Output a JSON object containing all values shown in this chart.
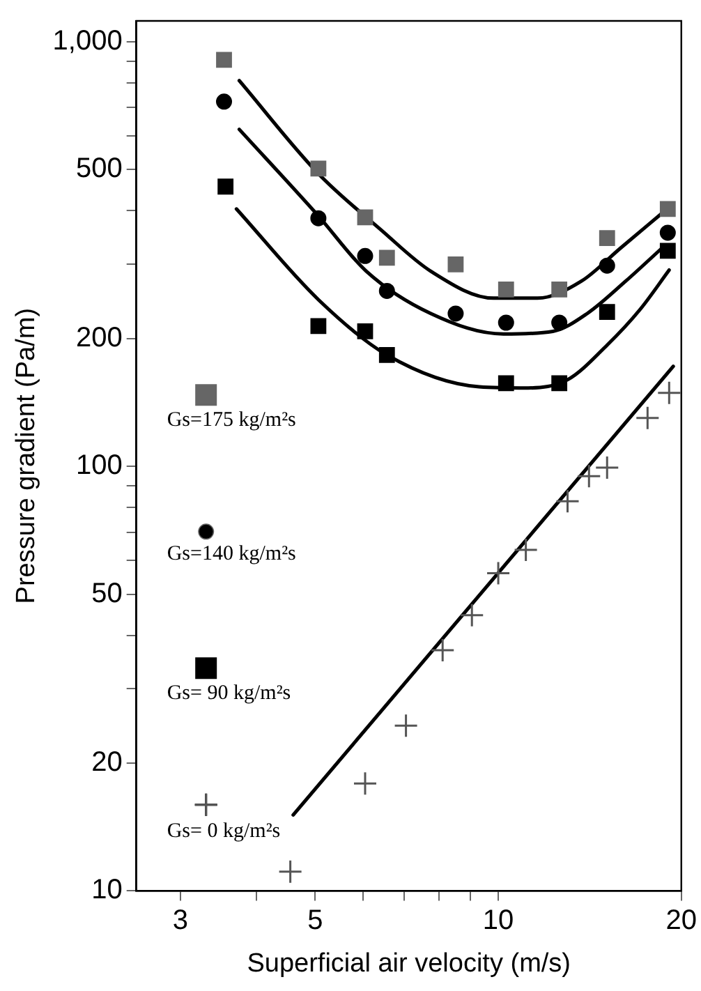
{
  "chart_data": {
    "type": "scatter",
    "xlabel": "Superficial air velocity (m/s)",
    "ylabel": "Pressure gradient (Pa/m)",
    "log": "xy",
    "grid": false,
    "legend": "left",
    "xlim": [
      2.54,
      20
    ],
    "ylim": [
      10,
      1120
    ],
    "xticks": [
      3,
      {
        "value": 4,
        "label": null
      },
      5,
      {
        "value": 6,
        "label": null
      },
      {
        "value": 7,
        "label": null
      },
      {
        "value": 8,
        "label": null
      },
      {
        "value": 9,
        "label": null
      },
      10,
      20
    ],
    "yticks": [
      10,
      20,
      {
        "value": 30,
        "label": null
      },
      {
        "value": 40,
        "label": null
      },
      50,
      {
        "value": 60,
        "label": null
      },
      {
        "value": 70,
        "label": null
      },
      {
        "value": 80,
        "label": null
      },
      {
        "value": 90,
        "label": null
      },
      100,
      200,
      {
        "value": 300,
        "label": null
      },
      {
        "value": 400,
        "label": null
      },
      500,
      {
        "value": 600,
        "label": null
      },
      {
        "value": 700,
        "label": null
      },
      {
        "value": 800,
        "label": null
      },
      {
        "value": 900,
        "label": null
      },
      {
        "value": 1000,
        "label": "1,000"
      }
    ],
    "series": [
      {
        "name": "Gs=175 kg/m²s",
        "color": "#666666",
        "marker": "square",
        "x": [
          3.54,
          5.06,
          6.04,
          6.56,
          8.51,
          10.3,
          12.6,
          15.1,
          19.0
        ],
        "values": [
          907,
          503,
          386,
          310,
          299,
          261,
          261,
          345,
          404
        ]
      },
      {
        "name": "Gs=140 kg/m²s",
        "color": "#000000",
        "marker": "circle",
        "x": [
          3.54,
          5.06,
          6.04,
          6.56,
          8.51,
          10.3,
          12.6,
          15.1,
          19.0
        ],
        "values": [
          723,
          384,
          313,
          259,
          229,
          218,
          218,
          297,
          355
        ]
      },
      {
        "name": "Gs= 90 kg/m²s",
        "color": "#000000",
        "marker": "square",
        "x": [
          3.56,
          5.06,
          6.04,
          6.56,
          10.3,
          12.6,
          15.1,
          19.0
        ],
        "values": [
          456,
          214,
          208,
          183,
          157,
          157,
          231,
          322
        ]
      },
      {
        "name": "Gs= 0 kg/m²s",
        "color": "#555555",
        "marker": "cross",
        "x": [
          4.55,
          6.04,
          7.05,
          8.1,
          9.05,
          10.0,
          11.1,
          13.0,
          14.1,
          15.1,
          17.6,
          19.1
        ],
        "values": [
          11.1,
          17.9,
          24.5,
          36.9,
          44.6,
          56.0,
          63.6,
          82.8,
          94.8,
          99.3,
          130,
          149
        ]
      },
      {
        "type": "line",
        "color": "#000000",
        "marker": "none",
        "x": [
          3.75,
          5.06,
          6.41,
          7.75,
          9.83,
          11.6,
          13.7,
          15.9,
          18.6
        ],
        "values": [
          810,
          489,
          361,
          288,
          249,
          249,
          273,
          327,
          395
        ]
      },
      {
        "type": "line",
        "color": "#000000",
        "marker": "none",
        "x": [
          3.75,
          5.06,
          6.07,
          7.75,
          10.2,
          12.3,
          14.0,
          16.2,
          18.6
        ],
        "values": [
          622,
          389,
          288,
          229,
          205,
          208,
          229,
          273,
          327
        ]
      },
      {
        "type": "line",
        "color": "#000000",
        "marker": "none",
        "x": [
          3.71,
          5.06,
          6.56,
          9.3,
          11.2,
          13.0,
          15.1,
          17.1,
          19.1
        ],
        "values": [
          404,
          247,
          183,
          154,
          153,
          160,
          193,
          234,
          290
        ]
      },
      {
        "type": "line",
        "color": "#000000",
        "marker": "none",
        "x": [
          4.6,
          19.4
        ],
        "values": [
          15.1,
          172
        ]
      }
    ]
  }
}
